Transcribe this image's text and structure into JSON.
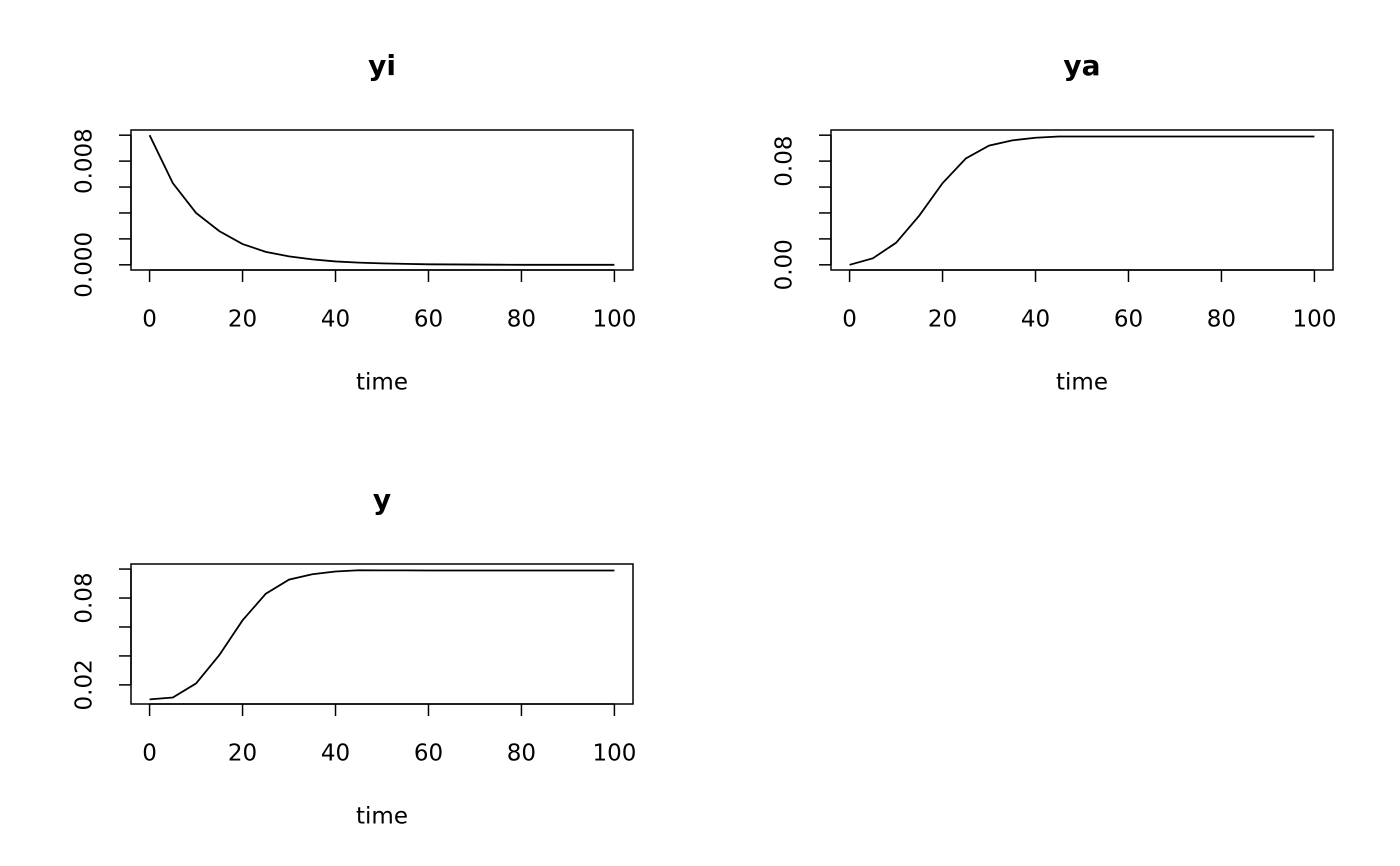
{
  "chart_data": [
    {
      "type": "line",
      "title": "yi",
      "xlabel": "time",
      "color": "#000000",
      "x": [
        0,
        5,
        10,
        15,
        20,
        25,
        30,
        35,
        40,
        45,
        50,
        55,
        60,
        65,
        70,
        75,
        80,
        85,
        90,
        95,
        100
      ],
      "values": [
        0.01,
        0.0063,
        0.004,
        0.0026,
        0.0016,
        0.001,
        0.00065,
        0.00042,
        0.00026,
        0.00017,
        0.00011,
        7e-05,
        4e-05,
        3e-05,
        2e-05,
        1e-05,
        0,
        0,
        0,
        0,
        0
      ],
      "xlim": [
        -4,
        104
      ],
      "xticks": [
        0,
        20,
        40,
        60,
        80,
        100
      ],
      "ylim": [
        -0.0004,
        0.0104
      ],
      "yticks": [
        {
          "value": 0,
          "label": "0.000"
        },
        {
          "value": 0.008,
          "label": "0.008"
        }
      ],
      "yminor_ticks": [
        0.002,
        0.004,
        0.006,
        0.01
      ]
    },
    {
      "type": "line",
      "title": "ya",
      "xlabel": "time",
      "color": "#000000",
      "x": [
        0,
        5,
        10,
        15,
        20,
        25,
        30,
        35,
        40,
        45,
        50,
        55,
        60,
        65,
        70,
        75,
        80,
        85,
        90,
        95,
        100
      ],
      "values": [
        0,
        0.005,
        0.017,
        0.038,
        0.063,
        0.082,
        0.092,
        0.096,
        0.098,
        0.099,
        0.099,
        0.099,
        0.099,
        0.099,
        0.099,
        0.099,
        0.099,
        0.099,
        0.099,
        0.099,
        0.099
      ],
      "xlim": [
        -4,
        104
      ],
      "xticks": [
        0,
        20,
        40,
        60,
        80,
        100
      ],
      "ylim": [
        -0.004,
        0.104
      ],
      "yticks": [
        {
          "value": 0,
          "label": "0.00"
        },
        0.08
      ],
      "yminor_ticks": [
        0.02,
        0.04,
        0.06,
        0.1
      ]
    },
    {
      "type": "line",
      "title": "y",
      "xlabel": "time",
      "color": "#000000",
      "x": [
        0,
        5,
        10,
        15,
        20,
        25,
        30,
        35,
        40,
        45,
        50,
        55,
        60,
        65,
        70,
        75,
        80,
        85,
        90,
        95,
        100
      ],
      "values": [
        0.01,
        0.0113,
        0.021,
        0.0406,
        0.0646,
        0.083,
        0.0927,
        0.0964,
        0.0983,
        0.0992,
        0.0991,
        0.0991,
        0.099,
        0.099,
        0.099,
        0.099,
        0.099,
        0.099,
        0.099,
        0.099,
        0.099
      ],
      "xlim": [
        -4,
        104
      ],
      "xticks": [
        0,
        20,
        40,
        60,
        80,
        100
      ],
      "ylim": [
        0.0068,
        0.1035
      ],
      "yticks": [
        0.02,
        0.08
      ],
      "yminor_ticks": [
        0.04,
        0.06,
        0.1
      ]
    }
  ]
}
